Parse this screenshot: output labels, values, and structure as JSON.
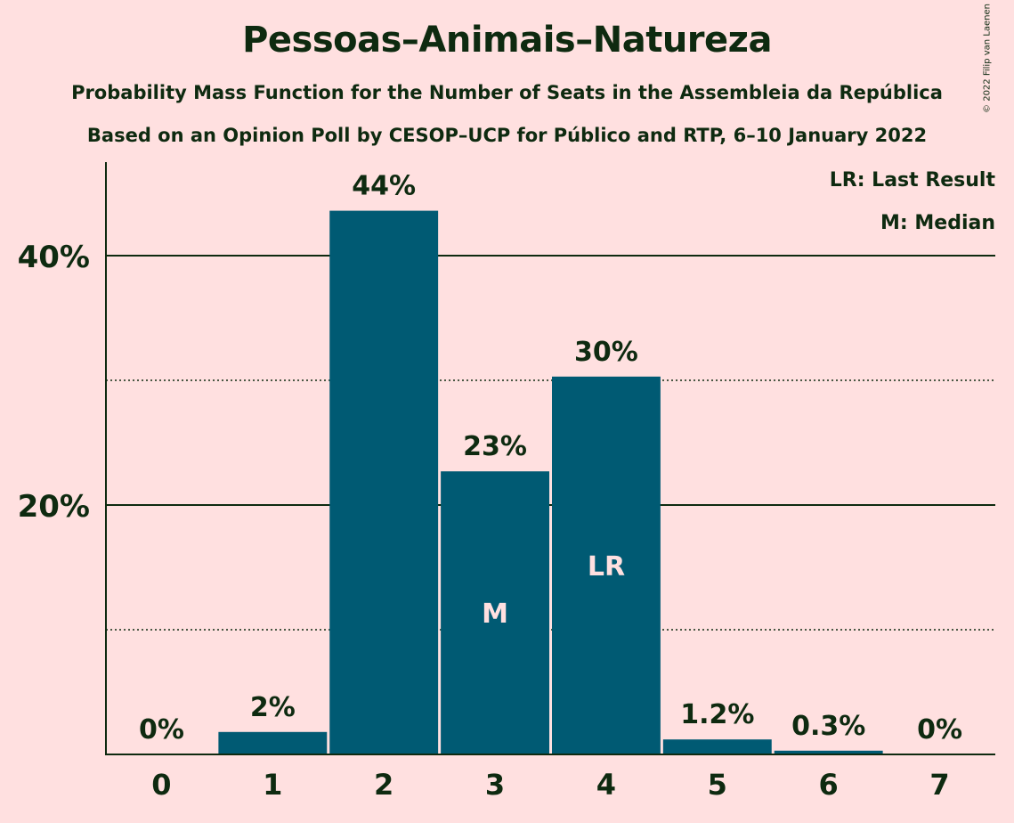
{
  "title": "Pessoas–Animais–Natureza",
  "subtitle_line1": "Probability Mass Function for the Number of Seats in the Assembleia da República",
  "subtitle_line2": "Based on an Opinion Poll by CESOP–UCP for Público and RTP, 6–10 January 2022",
  "copyright": "© 2022 Filip van Laenen",
  "legend": {
    "last_result": "LR: Last Result",
    "median": "M: Median"
  },
  "colors": {
    "background": "#ffe0e0",
    "bar": "#005a73",
    "text": "#0e2a10",
    "bar_text": "#ffe0e0"
  },
  "chart_data": {
    "type": "bar",
    "categories": [
      "0",
      "1",
      "2",
      "3",
      "4",
      "5",
      "6",
      "7"
    ],
    "values": [
      0,
      1.8,
      43.6,
      22.7,
      30.3,
      1.2,
      0.3,
      0
    ],
    "data_labels": [
      "0%",
      "2%",
      "44%",
      "23%",
      "30%",
      "1.2%",
      "0.3%",
      "0%"
    ],
    "bar_markers": [
      "",
      "",
      "",
      "M",
      "LR",
      "",
      "",
      ""
    ],
    "yticks": [
      {
        "value": 20,
        "label": "20%"
      },
      {
        "value": 40,
        "label": "40%"
      }
    ],
    "minor_gridlines": [
      10,
      30
    ],
    "ylim": [
      0,
      47.5
    ],
    "legend_position": "top-right"
  }
}
